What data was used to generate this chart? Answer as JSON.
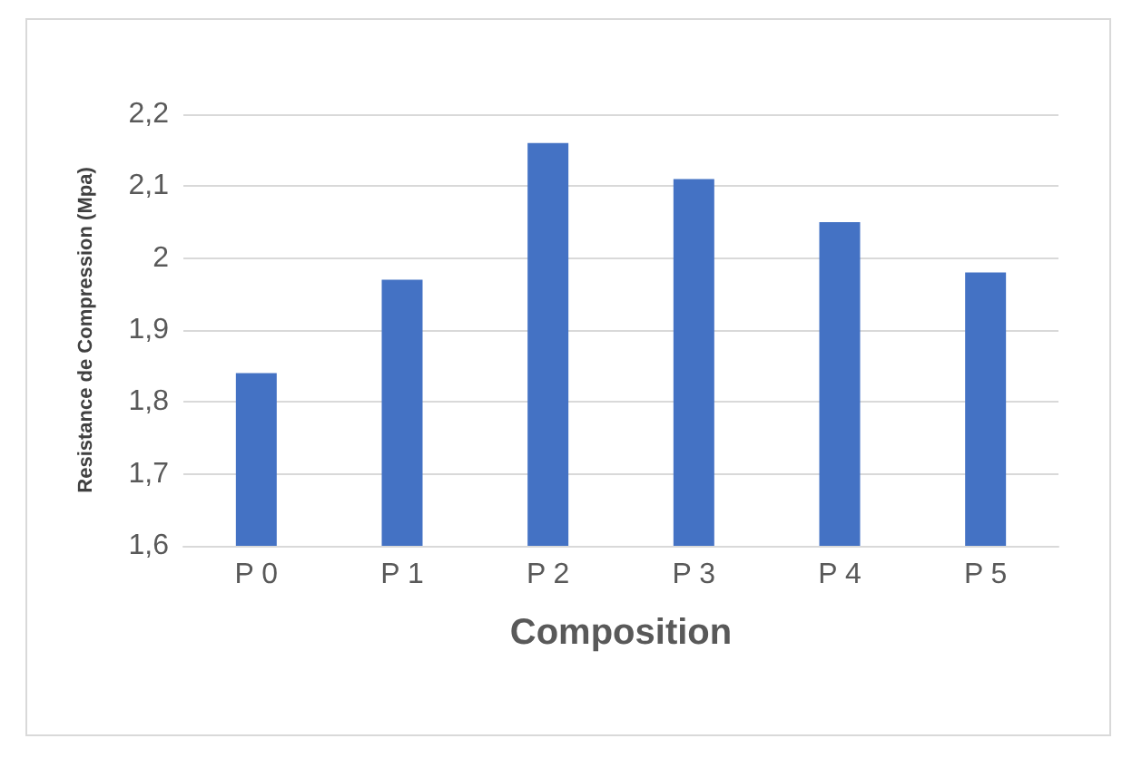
{
  "chart_data": {
    "type": "bar",
    "xlabel": "Composition",
    "ylabel": "Resistance de Compression (Mpa)",
    "categories": [
      "P 0",
      "P 1",
      "P 2",
      "P 3",
      "P 4",
      "P 5"
    ],
    "values": [
      1.84,
      1.97,
      2.16,
      2.11,
      2.05,
      1.98
    ],
    "color": "#4472c4",
    "ylim": [
      1.6,
      2.2
    ],
    "yticks": [
      {
        "value": 1.6,
        "label": "1,6"
      },
      {
        "value": 1.7,
        "label": "1,7"
      },
      {
        "value": 1.8,
        "label": "1,8"
      },
      {
        "value": 1.9,
        "label": "1,9"
      },
      {
        "value": 2,
        "label": "2"
      },
      {
        "value": 2.1,
        "label": "2,1"
      },
      {
        "value": 2.2,
        "label": "2,2"
      }
    ],
    "grid": true
  }
}
